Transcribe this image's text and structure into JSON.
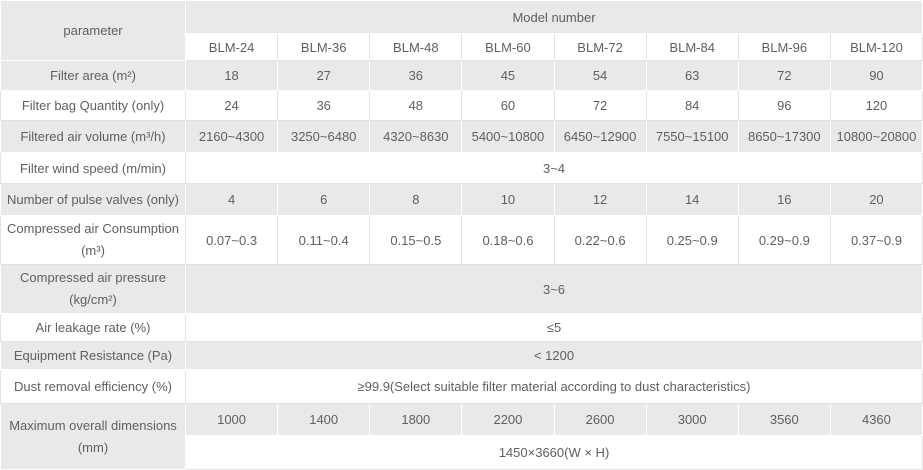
{
  "table": {
    "parameter_label": "parameter",
    "model_number_label": "Model number",
    "models": [
      "BLM-24",
      "BLM-36",
      "BLM-48",
      "BLM-60",
      "BLM-72",
      "BLM-84",
      "BLM-96",
      "BLM-120"
    ],
    "rows": [
      {
        "label": "Filter area (m²)",
        "values": [
          "18",
          "27",
          "36",
          "45",
          "54",
          "63",
          "72",
          "90"
        ]
      },
      {
        "label": "Filter bag Quantity (only)",
        "values": [
          "24",
          "36",
          "48",
          "60",
          "72",
          "84",
          "96",
          "120"
        ]
      },
      {
        "label": "Filtered air volume (m³/h)",
        "values": [
          "2160~4300",
          "3250~6480",
          "4320~8630",
          "5400~10800",
          "6450~12900",
          "7550~15100",
          "8650~17300",
          "10800~20800"
        ]
      },
      {
        "label": "Filter wind speed (m/min)",
        "value": "3~4"
      },
      {
        "label": "Number of pulse valves (only)",
        "values": [
          "4",
          "6",
          "8",
          "10",
          "12",
          "14",
          "16",
          "20"
        ]
      },
      {
        "label": "Compressed air Consumption",
        "label_line2": "(m³)",
        "values": [
          "0.07~0.3",
          "0.11~0.4",
          "0.15~0.5",
          "0.18~0.6",
          "0.22~0.6",
          "0.25~0.9",
          "0.29~0.9",
          "0.37~0.9"
        ]
      },
      {
        "label": "Compressed air pressure",
        "label_line2": "(kg/cm²)",
        "value": "3~6"
      },
      {
        "label": "Air leakage rate (%)",
        "value": "≤5"
      },
      {
        "label": "Equipment Resistance (Pa)",
        "value": "< 1200"
      },
      {
        "label": "Dust removal efficiency (%)",
        "value": "≥99.9(Select suitable filter material according to dust characteristics)"
      },
      {
        "label": "Maximum overall dimensions",
        "label_line2": "(mm)",
        "values": [
          "1000",
          "1400",
          "1800",
          "2200",
          "2600",
          "3000",
          "3560",
          "4360"
        ],
        "span_value": "1450×3660(W  ×  H)"
      }
    ],
    "colors": {
      "row_shade": "#e9e9e9",
      "text": "#5f5f5f",
      "grid_light": "#e3e3e3",
      "grid_on_shade": "#ffffff"
    }
  }
}
